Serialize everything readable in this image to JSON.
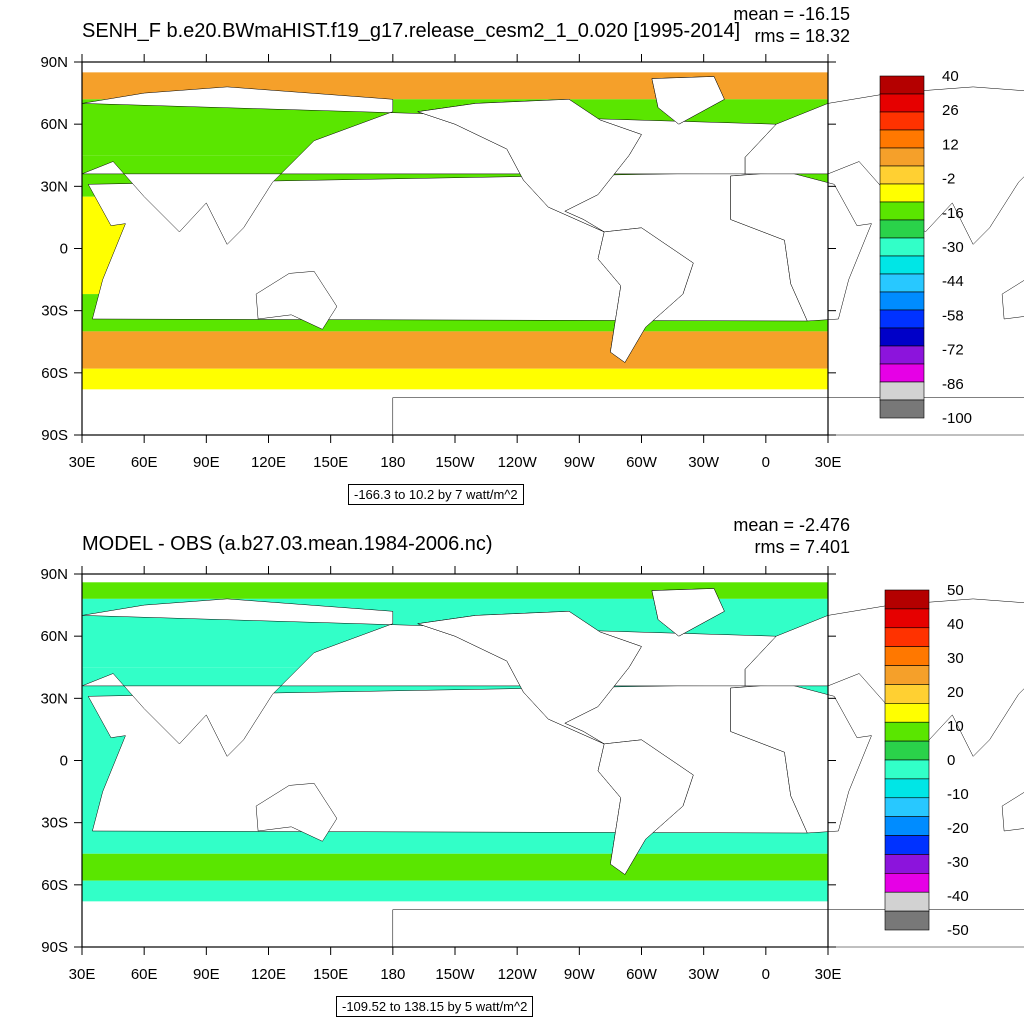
{
  "chart_data": [
    {
      "type": "heatmap",
      "title": "SENH_F b.e20.BWmaHIST.f19_g17.release_cesm2_1_0.020 [1995-2014]",
      "stats": {
        "mean_text": "mean = -16.15",
        "rms_text": "rms = 18.32"
      },
      "x_ticks": [
        "30E",
        "60E",
        "90E",
        "120E",
        "150E",
        "180",
        "150W",
        "120W",
        "90W",
        "60W",
        "30W",
        "0",
        "30E"
      ],
      "y_ticks": [
        "90N",
        "60N",
        "30N",
        "0",
        "30S",
        "60S",
        "90S"
      ],
      "xlim": [
        30,
        390
      ],
      "ylim": [
        -90,
        90
      ],
      "colorbar": {
        "labels": [
          "40",
          "26",
          "12",
          "-2",
          "-16",
          "-30",
          "-44",
          "-58",
          "-72",
          "-86",
          "-100"
        ],
        "colors": [
          "#b40000",
          "#e60000",
          "#ff3200",
          "#ff7800",
          "#f5a02a",
          "#ffd032",
          "#ffff00",
          "#5ae600",
          "#2ad24a",
          "#32ffc8",
          "#00e6e6",
          "#28c8ff",
          "#008cff",
          "#0032ff",
          "#0000c8",
          "#8c14dc",
          "#e600e6",
          "#d2d2d2",
          "#787878"
        ]
      },
      "range_text": "-166.3 to 10.2 by 7 watt/m^2",
      "units": "watt/m^2"
    },
    {
      "type": "heatmap",
      "title": "MODEL - OBS (a.b27.03.mean.1984-2006.nc)",
      "stats": {
        "mean_text": "mean = -2.476",
        "rms_text": "rms = 7.401"
      },
      "x_ticks": [
        "30E",
        "60E",
        "90E",
        "120E",
        "150E",
        "180",
        "150W",
        "120W",
        "90W",
        "60W",
        "30W",
        "0",
        "30E"
      ],
      "y_ticks": [
        "90N",
        "60N",
        "30N",
        "0",
        "30S",
        "60S",
        "90S"
      ],
      "xlim": [
        30,
        390
      ],
      "ylim": [
        -90,
        90
      ],
      "colorbar": {
        "labels": [
          "50",
          "40",
          "30",
          "20",
          "10",
          "0",
          "-10",
          "-20",
          "-30",
          "-40",
          "-50"
        ],
        "colors": [
          "#b40000",
          "#e60000",
          "#ff3200",
          "#ff7800",
          "#f5a02a",
          "#ffd032",
          "#ffff00",
          "#5ae600",
          "#2ad24a",
          "#32ffc8",
          "#00e6e6",
          "#28c8ff",
          "#008cff",
          "#0032ff",
          "#8c14dc",
          "#e600e6",
          "#d2d2d2",
          "#787878"
        ]
      },
      "range_text": "-109.52 to 138.15 by 5 watt/m^2",
      "units": "watt/m^2"
    }
  ],
  "palette": {
    "ocean_yellow": "#ffff00",
    "ocean_green": "#5ae600",
    "ocean_cyan": "#32ffc8",
    "ocean_orange": "#f5a02a",
    "land": "#ffffff"
  }
}
